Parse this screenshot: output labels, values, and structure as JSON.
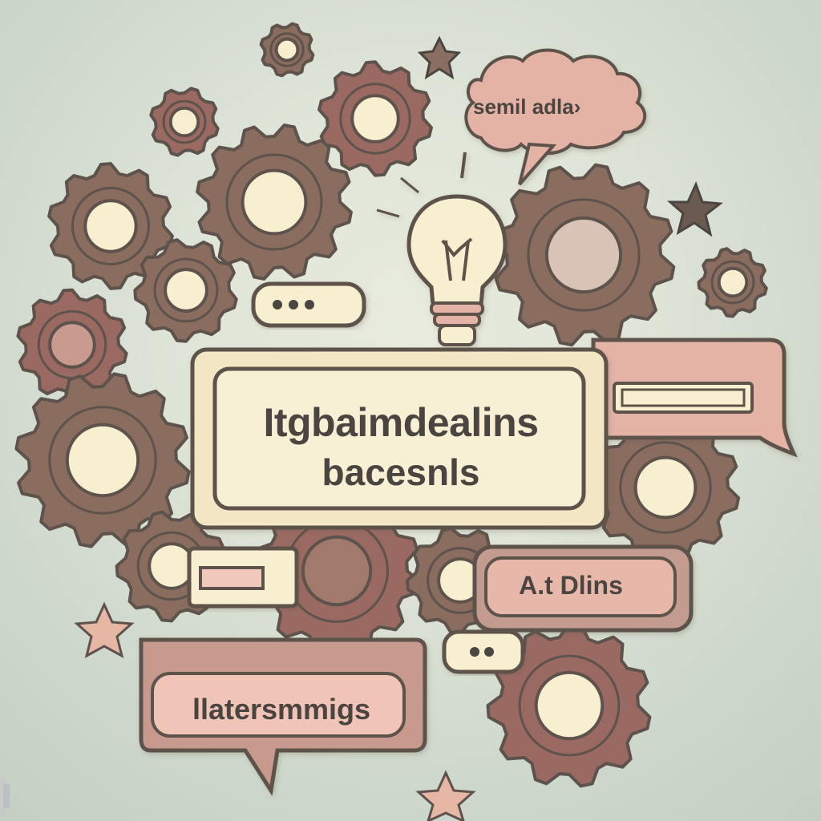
{
  "main_card": {
    "line1": "Itgbaimdealins",
    "line2": "bacesnls"
  },
  "cloud_bubble": {
    "text": "semil adla›"
  },
  "right_bubble": {
    "text": "A.t Dlins"
  },
  "bottom_bubble": {
    "text": "llatersmmigs"
  },
  "colors": {
    "gear_brown": "#8a6d5f",
    "gear_rose": "#9a6a62",
    "outline": "#5d524c",
    "cream": "#f7efcf",
    "pink": "#e4b3a6",
    "light_pink": "#f0c9bc"
  },
  "icons": [
    "gear-icon",
    "lightbulb-icon",
    "speech-bubble-icon",
    "thought-cloud-icon",
    "star-icon",
    "ellipsis-icon"
  ]
}
